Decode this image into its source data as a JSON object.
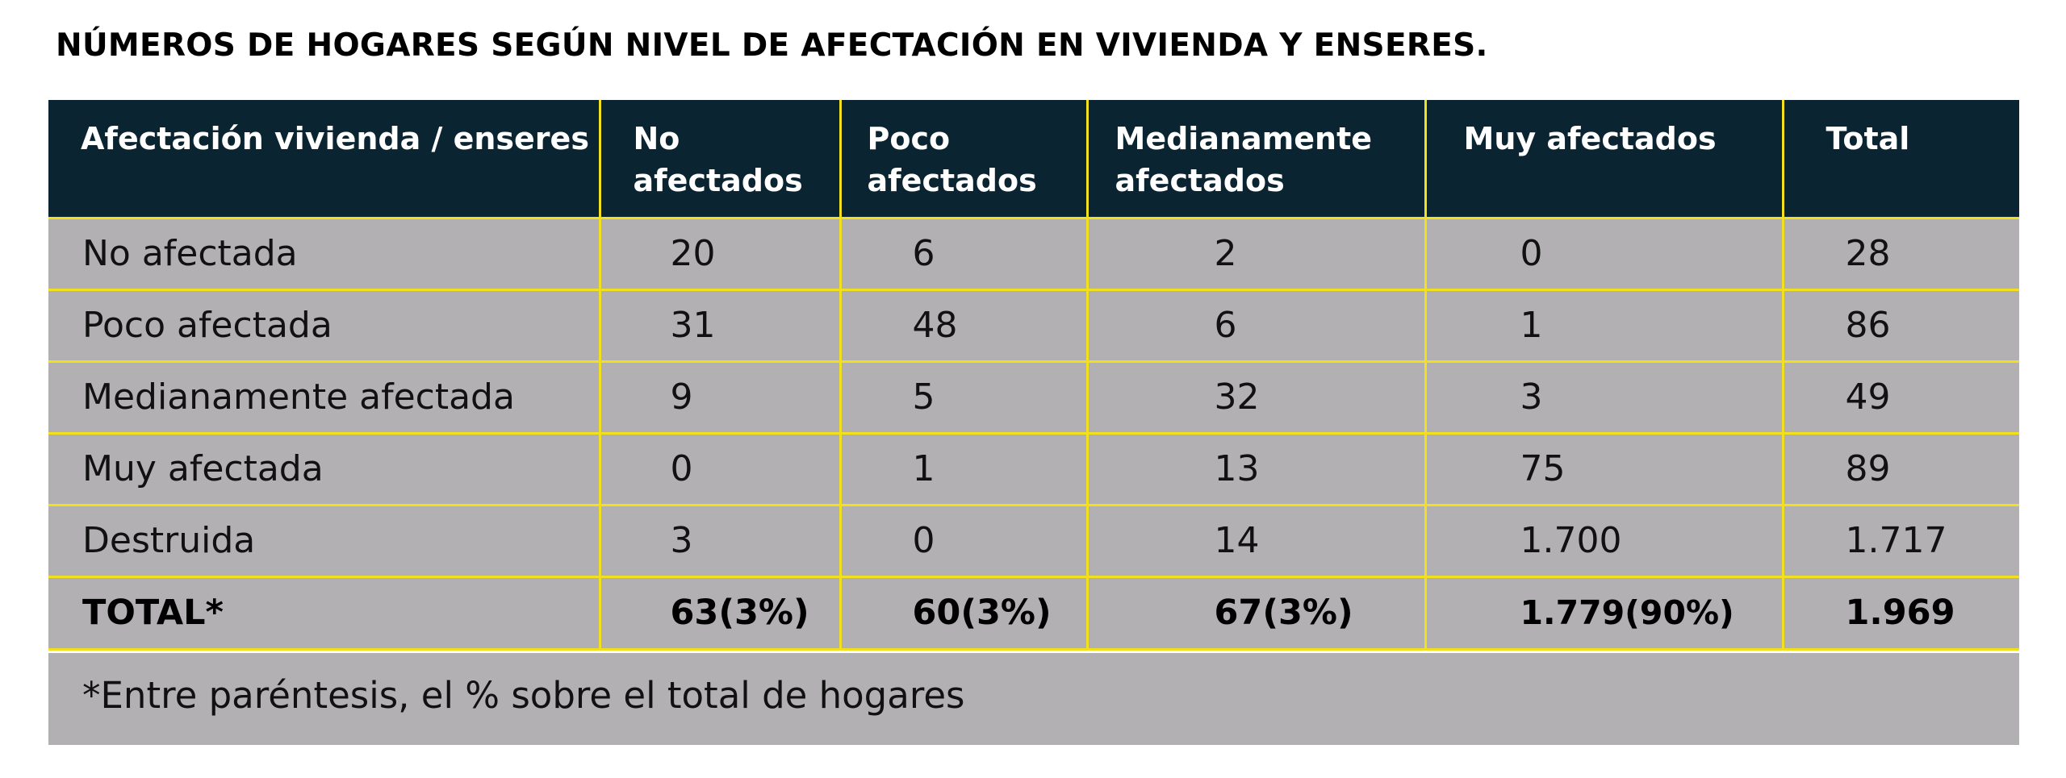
{
  "title": "NÚMEROS DE HOGARES SEGÚN NIVEL DE AFECTACIÓN EN VIVIENDA Y ENSERES.",
  "table": {
    "headers": [
      "Afectación vivienda / enseres",
      "No afectados",
      "Poco afectados",
      "Medianamente afectados",
      "Muy afectados",
      "Total"
    ],
    "rows": [
      [
        "No afectada",
        "20",
        "6",
        "2",
        "0",
        "28"
      ],
      [
        "Poco afectada",
        "31",
        "48",
        "6",
        "1",
        "86"
      ],
      [
        "Medianamente afectada",
        "9",
        "5",
        "32",
        "3",
        "49"
      ],
      [
        "Muy afectada",
        "0",
        "1",
        "13",
        "75",
        "89"
      ],
      [
        "Destruida",
        "3",
        "0",
        "14",
        "1.700",
        "1.717"
      ]
    ],
    "total_row": [
      "TOTAL*",
      "63(3%)",
      "60(3%)",
      "67(3%)",
      "1.779(90%)",
      "1.969"
    ]
  },
  "footnote": "*Entre paréntesis, el % sobre el total de hogares",
  "colors": {
    "header_bg": "#0b2432",
    "cell_bg": "#b2b0b2",
    "grid_line": "#f2e01e"
  }
}
